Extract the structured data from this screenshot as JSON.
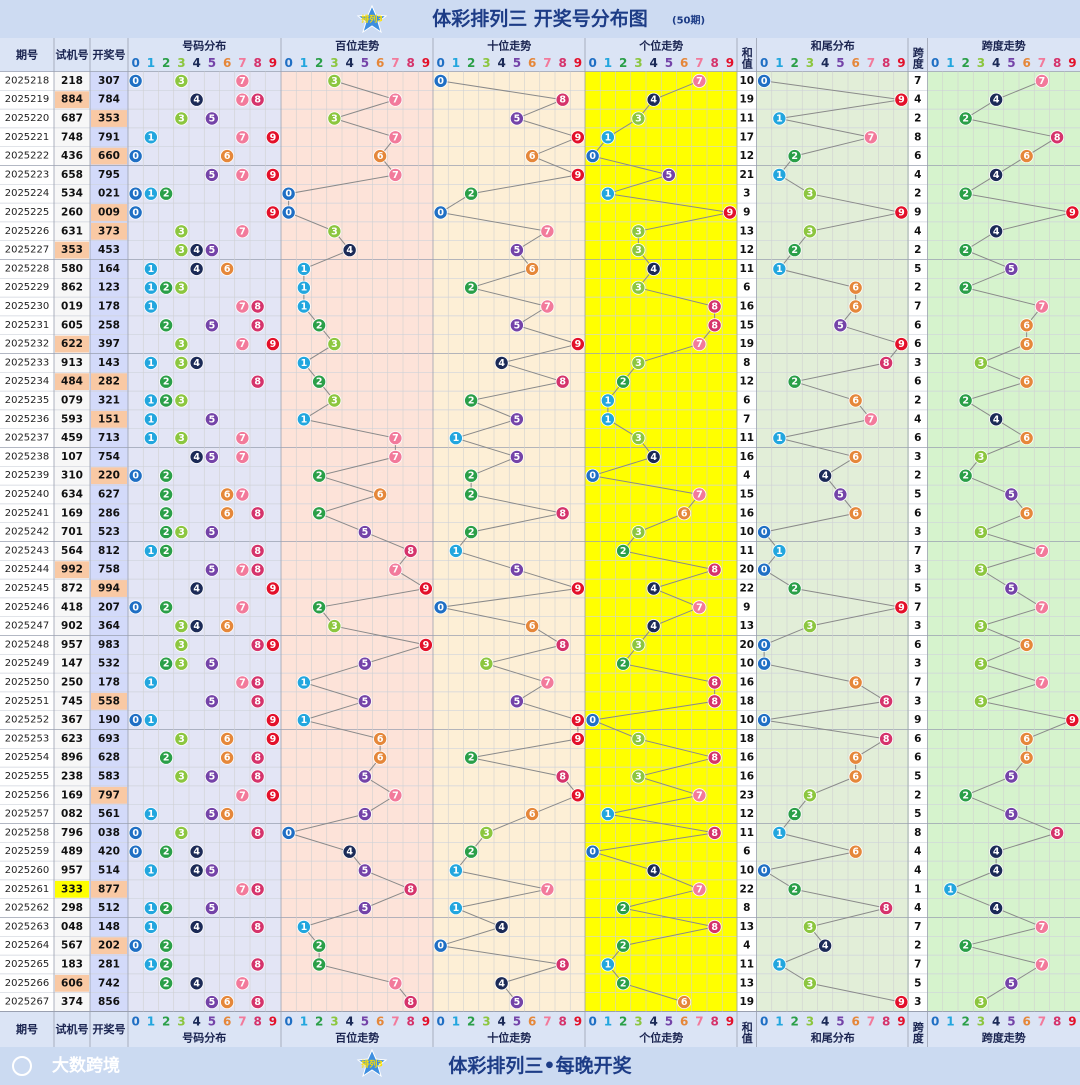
{
  "header": {
    "title": "体彩排列三 开奖号分布图",
    "periods": "(50期)",
    "badge": "排列3"
  },
  "columns": {
    "period": "期号",
    "trial": "试机号",
    "draw": "开奖号",
    "distribution": "号码分布",
    "hundreds": "百位走势",
    "tens": "十位走势",
    "units": "个位走势",
    "sum": "和值",
    "sum_tail": "和尾分布",
    "span": "跨度",
    "span_trend": "跨度走势"
  },
  "digits": [
    0,
    1,
    2,
    3,
    4,
    5,
    6,
    7,
    8,
    9
  ],
  "ball_colors": [
    "#1f6fc4",
    "#22a6de",
    "#2a9f48",
    "#8cc63f",
    "#1b2a57",
    "#7443a8",
    "#e5873a",
    "#f27a9b",
    "#d5336b",
    "#e3102a"
  ],
  "rows": [
    {
      "period": "2025218",
      "trial": "218",
      "draw": "307",
      "digits": [
        3,
        0,
        7
      ],
      "sum": 10,
      "sum_tail": 0,
      "span": 7
    },
    {
      "period": "2025219",
      "trial": "884",
      "draw": "784",
      "digits": [
        7,
        8,
        4
      ],
      "sum": 19,
      "sum_tail": 9,
      "span": 4
    },
    {
      "period": "2025220",
      "trial": "687",
      "draw": "353",
      "digits": [
        3,
        5,
        3
      ],
      "sum": 11,
      "sum_tail": 1,
      "span": 2
    },
    {
      "period": "2025221",
      "trial": "748",
      "draw": "791",
      "digits": [
        7,
        9,
        1
      ],
      "sum": 17,
      "sum_tail": 7,
      "span": 8
    },
    {
      "period": "2025222",
      "trial": "436",
      "draw": "660",
      "digits": [
        6,
        6,
        0
      ],
      "sum": 12,
      "sum_tail": 2,
      "span": 6
    },
    {
      "period": "2025223",
      "trial": "658",
      "draw": "795",
      "digits": [
        7,
        9,
        5
      ],
      "sum": 21,
      "sum_tail": 1,
      "span": 4
    },
    {
      "period": "2025224",
      "trial": "534",
      "draw": "021",
      "digits": [
        0,
        2,
        1
      ],
      "sum": 3,
      "sum_tail": 3,
      "span": 2
    },
    {
      "period": "2025225",
      "trial": "260",
      "draw": "009",
      "digits": [
        0,
        0,
        9
      ],
      "sum": 9,
      "sum_tail": 9,
      "span": 9
    },
    {
      "period": "2025226",
      "trial": "631",
      "draw": "373",
      "digits": [
        3,
        7,
        3
      ],
      "sum": 13,
      "sum_tail": 3,
      "span": 4
    },
    {
      "period": "2025227",
      "trial": "353",
      "draw": "453",
      "digits": [
        4,
        5,
        3
      ],
      "sum": 12,
      "sum_tail": 2,
      "span": 2
    },
    {
      "period": "2025228",
      "trial": "580",
      "draw": "164",
      "digits": [
        1,
        6,
        4
      ],
      "sum": 11,
      "sum_tail": 1,
      "span": 5
    },
    {
      "period": "2025229",
      "trial": "862",
      "draw": "123",
      "digits": [
        1,
        2,
        3
      ],
      "sum": 6,
      "sum_tail": 6,
      "span": 2
    },
    {
      "period": "2025230",
      "trial": "019",
      "draw": "178",
      "digits": [
        1,
        7,
        8
      ],
      "sum": 16,
      "sum_tail": 6,
      "span": 7
    },
    {
      "period": "2025231",
      "trial": "605",
      "draw": "258",
      "digits": [
        2,
        5,
        8
      ],
      "sum": 15,
      "sum_tail": 5,
      "span": 6
    },
    {
      "period": "2025232",
      "trial": "622",
      "draw": "397",
      "digits": [
        3,
        9,
        7
      ],
      "sum": 19,
      "sum_tail": 9,
      "span": 6
    },
    {
      "period": "2025233",
      "trial": "913",
      "draw": "143",
      "digits": [
        1,
        4,
        3
      ],
      "sum": 8,
      "sum_tail": 8,
      "span": 3
    },
    {
      "period": "2025234",
      "trial": "484",
      "draw": "282",
      "digits": [
        2,
        8,
        2
      ],
      "sum": 12,
      "sum_tail": 2,
      "span": 6
    },
    {
      "period": "2025235",
      "trial": "079",
      "draw": "321",
      "digits": [
        3,
        2,
        1
      ],
      "sum": 6,
      "sum_tail": 6,
      "span": 2
    },
    {
      "period": "2025236",
      "trial": "593",
      "draw": "151",
      "digits": [
        1,
        5,
        1
      ],
      "sum": 7,
      "sum_tail": 7,
      "span": 4
    },
    {
      "period": "2025237",
      "trial": "459",
      "draw": "713",
      "digits": [
        7,
        1,
        3
      ],
      "sum": 11,
      "sum_tail": 1,
      "span": 6
    },
    {
      "period": "2025238",
      "trial": "107",
      "draw": "754",
      "digits": [
        7,
        5,
        4
      ],
      "sum": 16,
      "sum_tail": 6,
      "span": 3
    },
    {
      "period": "2025239",
      "trial": "310",
      "draw": "220",
      "digits": [
        2,
        2,
        0
      ],
      "sum": 4,
      "sum_tail": 4,
      "span": 2
    },
    {
      "period": "2025240",
      "trial": "634",
      "draw": "627",
      "digits": [
        6,
        2,
        7
      ],
      "sum": 15,
      "sum_tail": 5,
      "span": 5
    },
    {
      "period": "2025241",
      "trial": "169",
      "draw": "286",
      "digits": [
        2,
        8,
        6
      ],
      "sum": 16,
      "sum_tail": 6,
      "span": 6
    },
    {
      "period": "2025242",
      "trial": "701",
      "draw": "523",
      "digits": [
        5,
        2,
        3
      ],
      "sum": 10,
      "sum_tail": 0,
      "span": 3
    },
    {
      "period": "2025243",
      "trial": "564",
      "draw": "812",
      "digits": [
        8,
        1,
        2
      ],
      "sum": 11,
      "sum_tail": 1,
      "span": 7
    },
    {
      "period": "2025244",
      "trial": "992",
      "draw": "758",
      "digits": [
        7,
        5,
        8
      ],
      "sum": 20,
      "sum_tail": 0,
      "span": 3
    },
    {
      "period": "2025245",
      "trial": "872",
      "draw": "994",
      "digits": [
        9,
        9,
        4
      ],
      "sum": 22,
      "sum_tail": 2,
      "span": 5
    },
    {
      "period": "2025246",
      "trial": "418",
      "draw": "207",
      "digits": [
        2,
        0,
        7
      ],
      "sum": 9,
      "sum_tail": 9,
      "span": 7
    },
    {
      "period": "2025247",
      "trial": "902",
      "draw": "364",
      "digits": [
        3,
        6,
        4
      ],
      "sum": 13,
      "sum_tail": 3,
      "span": 3
    },
    {
      "period": "2025248",
      "trial": "957",
      "draw": "983",
      "digits": [
        9,
        8,
        3
      ],
      "sum": 20,
      "sum_tail": 0,
      "span": 6
    },
    {
      "period": "2025249",
      "trial": "147",
      "draw": "532",
      "digits": [
        5,
        3,
        2
      ],
      "sum": 10,
      "sum_tail": 0,
      "span": 3
    },
    {
      "period": "2025250",
      "trial": "250",
      "draw": "178",
      "digits": [
        1,
        7,
        8
      ],
      "sum": 16,
      "sum_tail": 6,
      "span": 7
    },
    {
      "period": "2025251",
      "trial": "745",
      "draw": "558",
      "digits": [
        5,
        5,
        8
      ],
      "sum": 18,
      "sum_tail": 8,
      "span": 3
    },
    {
      "period": "2025252",
      "trial": "367",
      "draw": "190",
      "digits": [
        1,
        9,
        0
      ],
      "sum": 10,
      "sum_tail": 0,
      "span": 9
    },
    {
      "period": "2025253",
      "trial": "623",
      "draw": "693",
      "digits": [
        6,
        9,
        3
      ],
      "sum": 18,
      "sum_tail": 8,
      "span": 6
    },
    {
      "period": "2025254",
      "trial": "896",
      "draw": "628",
      "digits": [
        6,
        2,
        8
      ],
      "sum": 16,
      "sum_tail": 6,
      "span": 6
    },
    {
      "period": "2025255",
      "trial": "238",
      "draw": "583",
      "digits": [
        5,
        8,
        3
      ],
      "sum": 16,
      "sum_tail": 6,
      "span": 5
    },
    {
      "period": "2025256",
      "trial": "169",
      "draw": "797",
      "digits": [
        7,
        9,
        7
      ],
      "sum": 23,
      "sum_tail": 3,
      "span": 2
    },
    {
      "period": "2025257",
      "trial": "082",
      "draw": "561",
      "digits": [
        5,
        6,
        1
      ],
      "sum": 12,
      "sum_tail": 2,
      "span": 5
    },
    {
      "period": "2025258",
      "trial": "796",
      "draw": "038",
      "digits": [
        0,
        3,
        8
      ],
      "sum": 11,
      "sum_tail": 1,
      "span": 8
    },
    {
      "period": "2025259",
      "trial": "489",
      "draw": "420",
      "digits": [
        4,
        2,
        0
      ],
      "sum": 6,
      "sum_tail": 6,
      "span": 4
    },
    {
      "period": "2025260",
      "trial": "957",
      "draw": "514",
      "digits": [
        5,
        1,
        4
      ],
      "sum": 10,
      "sum_tail": 0,
      "span": 4
    },
    {
      "period": "2025261",
      "trial": "333",
      "draw": "877",
      "digits": [
        8,
        7,
        7
      ],
      "sum": 22,
      "sum_tail": 2,
      "span": 1
    },
    {
      "period": "2025262",
      "trial": "298",
      "draw": "512",
      "digits": [
        5,
        1,
        2
      ],
      "sum": 8,
      "sum_tail": 8,
      "span": 4
    },
    {
      "period": "2025263",
      "trial": "048",
      "draw": "148",
      "digits": [
        1,
        4,
        8
      ],
      "sum": 13,
      "sum_tail": 3,
      "span": 7
    },
    {
      "period": "2025264",
      "trial": "567",
      "draw": "202",
      "digits": [
        2,
        0,
        2
      ],
      "sum": 4,
      "sum_tail": 4,
      "span": 2
    },
    {
      "period": "2025265",
      "trial": "183",
      "draw": "281",
      "digits": [
        2,
        8,
        1
      ],
      "sum": 11,
      "sum_tail": 1,
      "span": 7
    },
    {
      "period": "2025266",
      "trial": "606",
      "draw": "742",
      "digits": [
        7,
        4,
        2
      ],
      "sum": 13,
      "sum_tail": 3,
      "span": 5
    },
    {
      "period": "2025267",
      "trial": "374",
      "draw": "856",
      "digits": [
        8,
        5,
        6
      ],
      "sum": 19,
      "sum_tail": 9,
      "span": 3
    }
  ],
  "footer": {
    "logo": "大数跨境",
    "slogan": "体彩排列三•每晚开奖"
  }
}
